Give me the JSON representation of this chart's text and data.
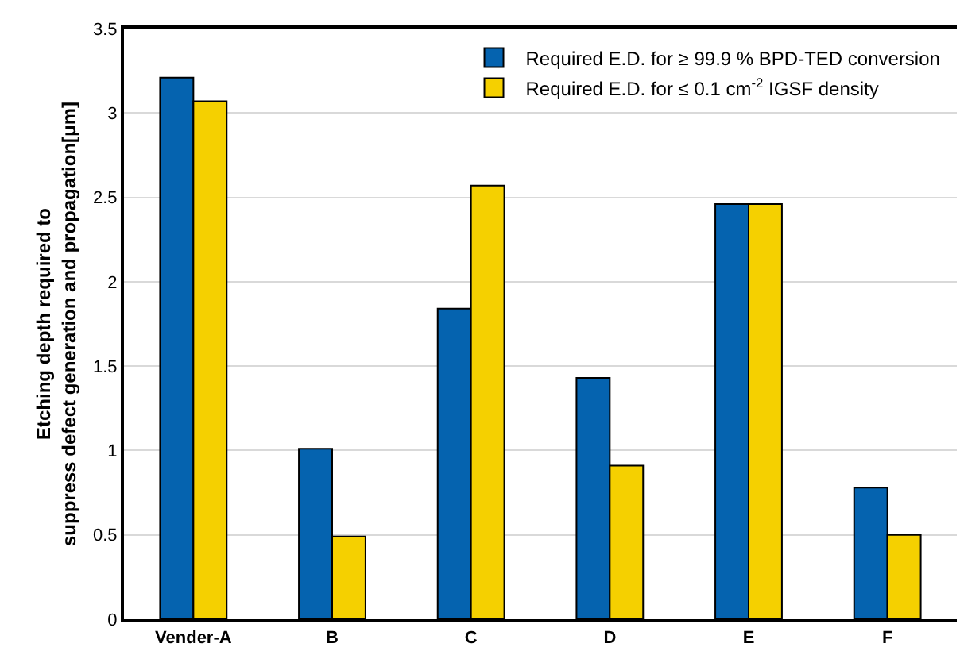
{
  "chart_data": {
    "type": "bar",
    "ylabel": "Etching depth required to\nsuppress defect generation and propagation[μm]",
    "categories": [
      "Vender-A",
      "B",
      "C",
      "D",
      "E",
      "F"
    ],
    "series": [
      {
        "name": "Required E.D. for ≥ 99.9 % BPD-TED conversion",
        "color": "#0563af",
        "values": [
          3.21,
          1.01,
          1.84,
          1.43,
          2.46,
          0.78
        ]
      },
      {
        "name": "Required E.D. for ≤ 0.1 cm$^{-2}$ IGSF density",
        "color": "#f5d000",
        "values": [
          3.07,
          0.49,
          2.57,
          0.91,
          2.46,
          0.5
        ]
      }
    ],
    "ylim": [
      0,
      3.5
    ],
    "yticks": [
      0,
      0.5,
      1,
      1.5,
      2,
      2.5,
      3,
      3.5
    ],
    "grid": "y",
    "legend": "top right"
  }
}
